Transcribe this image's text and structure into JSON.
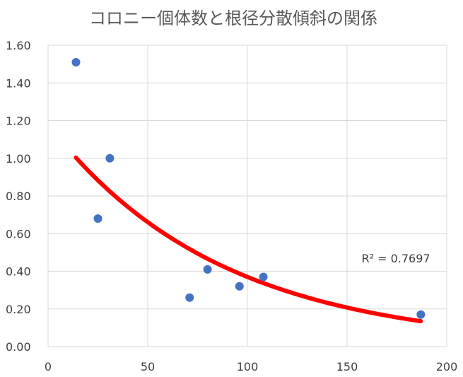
{
  "chart_data": {
    "type": "scatter",
    "title": "コロニー個体数と根径分散傾斜の関係",
    "xlabel": "",
    "ylabel": "",
    "xlim": [
      0,
      200
    ],
    "ylim": [
      0,
      1.6
    ],
    "x_ticks": [
      "0",
      "50",
      "100",
      "150",
      "200"
    ],
    "y_ticks": [
      "0.00",
      "0.20",
      "0.40",
      "0.60",
      "0.80",
      "1.00",
      "1.20",
      "1.40",
      "1.60"
    ],
    "grid": true,
    "series": [
      {
        "points": [
          {
            "x": 14,
            "y": 1.51
          },
          {
            "x": 25,
            "y": 0.68
          },
          {
            "x": 31,
            "y": 1.0
          },
          {
            "x": 71,
            "y": 0.26
          },
          {
            "x": 80,
            "y": 0.41
          },
          {
            "x": 96,
            "y": 0.32
          },
          {
            "x": 108,
            "y": 0.37
          },
          {
            "x": 187,
            "y": 0.17
          }
        ],
        "color": "#4472C4"
      }
    ],
    "trendline": {
      "type": "exponential",
      "a": 1.18,
      "b": -0.0116,
      "x_range": [
        14,
        187
      ],
      "color": "#FF0000",
      "r2_label": "R² = 0.7697"
    }
  }
}
